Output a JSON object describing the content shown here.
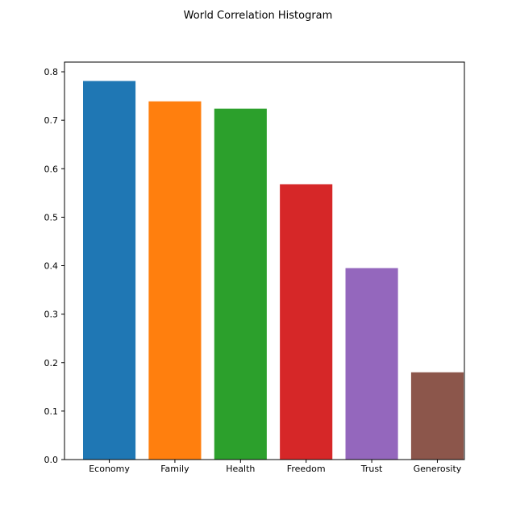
{
  "chart_data": {
    "type": "bar",
    "title": "World Correlation Histogram",
    "xlabel": "",
    "ylabel": "",
    "categories": [
      "Economy",
      "Family",
      "Health",
      "Freedom",
      "Trust",
      "Generosity"
    ],
    "values": [
      0.781,
      0.739,
      0.724,
      0.568,
      0.395,
      0.18
    ],
    "colors": [
      "#1f77b4",
      "#ff7f0e",
      "#2ca02c",
      "#d62728",
      "#9467bd",
      "#8c564b"
    ],
    "ylim": [
      0,
      0.82
    ],
    "yticks": [
      "0.0",
      "0.1",
      "0.2",
      "0.3",
      "0.4",
      "0.5",
      "0.6",
      "0.7",
      "0.8"
    ],
    "grid": false,
    "legend": "none"
  }
}
